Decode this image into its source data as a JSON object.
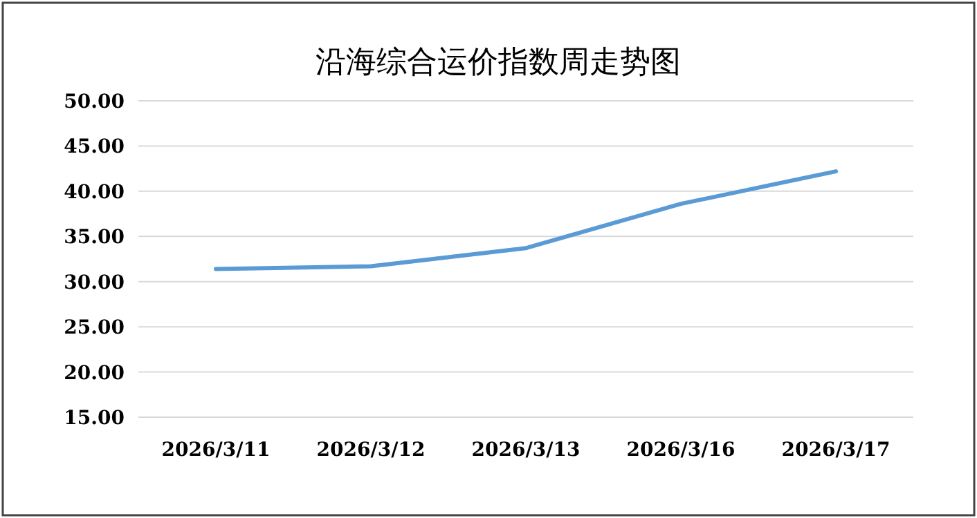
{
  "chart_data": {
    "type": "line",
    "title": "沿海综合运价指数周走势图",
    "categories": [
      "2026/3/11",
      "2026/3/12",
      "2026/3/13",
      "2026/3/16",
      "2026/3/17"
    ],
    "series": [
      {
        "color": "#5b9bd5",
        "values": [
          31.4,
          31.7,
          33.7,
          38.6,
          42.2
        ]
      }
    ],
    "ylim": [
      15,
      50
    ],
    "yticks": [
      {
        "value": 15,
        "label": "15.00"
      },
      {
        "value": 20,
        "label": "20.00"
      },
      {
        "value": 25,
        "label": "25.00"
      },
      {
        "value": 30,
        "label": "30.00"
      },
      {
        "value": 35,
        "label": "35.00"
      },
      {
        "value": 40,
        "label": "40.00"
      },
      {
        "value": 45,
        "label": "45.00"
      },
      {
        "value": 50,
        "label": "50.00"
      }
    ],
    "grid": "y",
    "marker": "none",
    "line_style": "solid"
  }
}
